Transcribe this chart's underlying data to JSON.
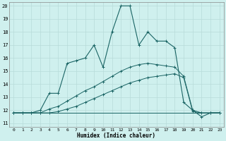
{
  "xlabel": "Humidex (Indice chaleur)",
  "bg_color": "#cff0ee",
  "grid_color": "#b8dbd9",
  "line_color": "#1a6464",
  "xlim": [
    -0.5,
    23.5
  ],
  "ylim": [
    10.7,
    20.3
  ],
  "yticks": [
    11,
    12,
    13,
    14,
    15,
    16,
    17,
    18,
    19,
    20
  ],
  "xticks": [
    0,
    1,
    2,
    3,
    4,
    5,
    6,
    7,
    8,
    9,
    10,
    11,
    12,
    13,
    14,
    15,
    16,
    17,
    18,
    19,
    20,
    21,
    22,
    23
  ],
  "lines": [
    {
      "x": [
        0,
        1,
        2,
        3,
        4,
        5,
        6,
        7,
        8,
        9,
        10,
        11,
        12,
        13,
        14,
        15,
        16,
        17,
        18,
        19,
        20,
        21,
        22,
        23
      ],
      "y": [
        11.8,
        11.8,
        11.8,
        11.8,
        11.8,
        11.8,
        11.8,
        11.8,
        11.8,
        11.8,
        11.8,
        11.8,
        11.8,
        11.8,
        11.8,
        11.8,
        11.8,
        11.8,
        11.8,
        11.8,
        11.8,
        11.8,
        11.8,
        11.8
      ],
      "marker": false,
      "lw": 0.7
    },
    {
      "x": [
        0,
        1,
        2,
        3,
        4,
        5,
        6,
        7,
        8,
        9,
        10,
        11,
        12,
        13,
        14,
        15,
        16,
        17,
        18,
        19,
        20,
        21,
        22,
        23
      ],
      "y": [
        11.8,
        11.8,
        11.8,
        11.8,
        11.8,
        11.9,
        12.1,
        12.3,
        12.6,
        12.9,
        13.2,
        13.5,
        13.8,
        14.1,
        14.3,
        14.5,
        14.6,
        14.7,
        14.8,
        14.5,
        11.9,
        11.8,
        11.8,
        11.8
      ],
      "marker": true,
      "lw": 0.7
    },
    {
      "x": [
        0,
        1,
        2,
        3,
        4,
        5,
        6,
        7,
        8,
        9,
        10,
        11,
        12,
        13,
        14,
        15,
        16,
        17,
        18,
        19,
        20,
        21,
        22,
        23
      ],
      "y": [
        11.8,
        11.8,
        11.8,
        11.8,
        12.1,
        12.3,
        12.7,
        13.1,
        13.5,
        13.8,
        14.2,
        14.6,
        15.0,
        15.3,
        15.5,
        15.6,
        15.5,
        15.4,
        15.3,
        14.6,
        12.0,
        11.8,
        11.8,
        11.8
      ],
      "marker": true,
      "lw": 0.7
    },
    {
      "x": [
        0,
        1,
        2,
        3,
        4,
        5,
        6,
        7,
        8,
        9,
        10,
        11,
        12,
        13,
        14,
        15,
        16,
        17,
        18,
        19,
        20,
        21,
        22,
        23
      ],
      "y": [
        11.8,
        11.8,
        11.8,
        12.0,
        13.3,
        13.3,
        15.6,
        15.8,
        16.0,
        17.0,
        15.3,
        18.0,
        20.0,
        20.0,
        17.0,
        18.0,
        17.3,
        17.3,
        16.8,
        12.6,
        12.0,
        11.5,
        11.8,
        11.8
      ],
      "marker": true,
      "lw": 0.8
    }
  ]
}
